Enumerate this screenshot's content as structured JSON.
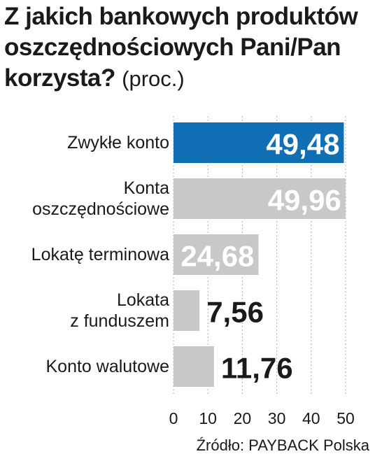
{
  "title": "Z jakich bankowych produktów oszczędnościowych Pani/Pan korzysta?",
  "unit": "(proc.)",
  "source": "Źródło: PAYBACK Polska",
  "colors": {
    "highlight": "#0f6eb4",
    "bar": "#c8c8c8",
    "value_on_bar": "#ffffff",
    "value_outside": "#1a1a1a"
  },
  "chart_data": {
    "type": "bar",
    "orientation": "horizontal",
    "title": "Z jakich bankowych produktów oszczędnościowych Pani/Pan korzysta?",
    "unit": "(proc.)",
    "categories": [
      [
        "Zwykłe konto"
      ],
      [
        "Konta",
        "oszczędnościowe"
      ],
      [
        "Lokatę terminowa"
      ],
      [
        "Lokata",
        "z funduszem"
      ],
      [
        "Konto walutowe"
      ]
    ],
    "values": [
      49.48,
      49.96,
      24.68,
      7.56,
      11.76
    ],
    "value_labels": [
      "49,48",
      "49,96",
      "24,68",
      "7,56",
      "11,76"
    ],
    "highlight_index": 0,
    "xlim": [
      0,
      50
    ],
    "xticks": [
      0,
      10,
      20,
      30,
      40,
      50
    ],
    "grid": true
  }
}
